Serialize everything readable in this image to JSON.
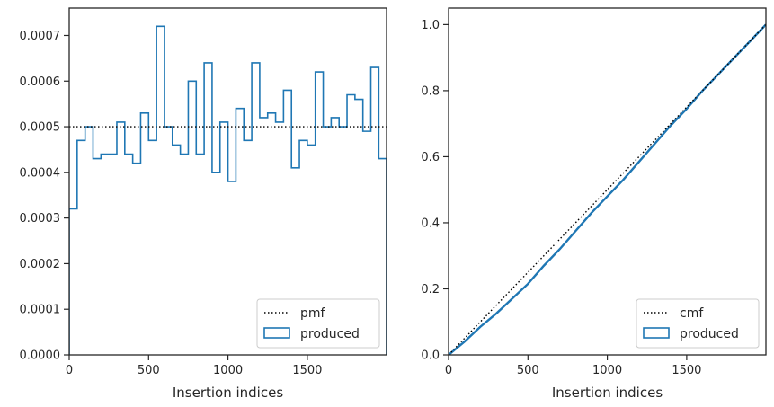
{
  "colors": {
    "produced": "#1f77b4",
    "reference": "#000000",
    "axes": "#262626",
    "legend_border": "#cccccc"
  },
  "chart_data": [
    {
      "type": "bar",
      "xlabel": "Insertion indices",
      "ylabel": "",
      "xlim": [
        0,
        1999
      ],
      "ylim": [
        0,
        0.00076
      ],
      "xticks": [
        0,
        500,
        1000,
        1500
      ],
      "xtick_labels": [
        "0",
        "500",
        "1000",
        "1500"
      ],
      "yticks": [
        0,
        0.0001,
        0.0002,
        0.0003,
        0.0004,
        0.0005,
        0.0006,
        0.0007
      ],
      "ytick_labels": [
        "0.0000",
        "0.0001",
        "0.0002",
        "0.0003",
        "0.0004",
        "0.0005",
        "0.0006",
        "0.0007"
      ],
      "grid": false,
      "legend_placement": "lower-right",
      "legend": [
        "pmf",
        "produced"
      ],
      "series": [
        {
          "name": "produced",
          "style": "step-histogram",
          "bin_edges": [
            0,
            50,
            100,
            150,
            200,
            250,
            300,
            350,
            400,
            450,
            500,
            550,
            600,
            650,
            700,
            750,
            800,
            850,
            900,
            950,
            1000,
            1050,
            1100,
            1150,
            1200,
            1250,
            1300,
            1350,
            1400,
            1450,
            1500,
            1550,
            1600,
            1650,
            1700,
            1750,
            1800,
            1850,
            1900,
            1950,
            1999
          ],
          "values": [
            0.00032,
            0.00047,
            0.0005,
            0.00043,
            0.00044,
            0.00044,
            0.00051,
            0.00044,
            0.00042,
            0.00053,
            0.00047,
            0.00072,
            0.0005,
            0.00046,
            0.00044,
            0.0006,
            0.00044,
            0.00064,
            0.0004,
            0.00051,
            0.00038,
            0.00054,
            0.00047,
            0.00064,
            0.00052,
            0.00053,
            0.00051,
            0.00058,
            0.00041,
            0.00047,
            0.00046,
            0.00062,
            0.0005,
            0.00052,
            0.0005,
            0.00057,
            0.00056,
            0.00049,
            0.00063,
            0.00043
          ]
        },
        {
          "name": "pmf",
          "style": "dotted-line",
          "x": [
            0,
            1999
          ],
          "y": [
            0.0005,
            0.0005
          ]
        }
      ]
    },
    {
      "type": "line",
      "xlabel": "Insertion indices",
      "ylabel": "",
      "xlim": [
        0,
        1999
      ],
      "ylim": [
        0,
        1.05
      ],
      "xticks": [
        0,
        500,
        1000,
        1500
      ],
      "xtick_labels": [
        "0",
        "500",
        "1000",
        "1500"
      ],
      "yticks": [
        0,
        0.2,
        0.4,
        0.6,
        0.8,
        1.0
      ],
      "ytick_labels": [
        "0.0",
        "0.2",
        "0.4",
        "0.6",
        "0.8",
        "1.0"
      ],
      "grid": false,
      "legend_placement": "lower-right",
      "legend": [
        "cmf",
        "produced"
      ],
      "series": [
        {
          "name": "produced",
          "style": "solid-line",
          "x": [
            0,
            100,
            200,
            300,
            400,
            500,
            600,
            700,
            800,
            900,
            1000,
            1100,
            1200,
            1300,
            1400,
            1500,
            1600,
            1700,
            1800,
            1900,
            1999
          ],
          "y": [
            0,
            0.04,
            0.085,
            0.125,
            0.17,
            0.215,
            0.27,
            0.32,
            0.375,
            0.43,
            0.48,
            0.53,
            0.585,
            0.64,
            0.695,
            0.745,
            0.8,
            0.85,
            0.9,
            0.95,
            1.0
          ]
        },
        {
          "name": "cmf",
          "style": "dotted-line",
          "x": [
            0,
            1999
          ],
          "y": [
            0,
            1.0
          ]
        }
      ]
    }
  ]
}
